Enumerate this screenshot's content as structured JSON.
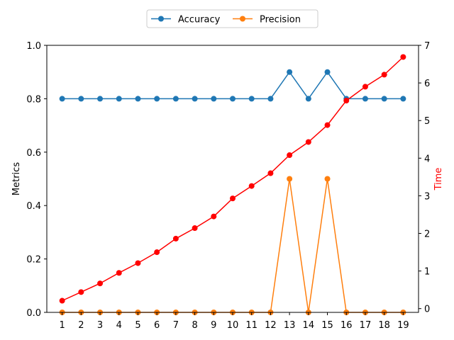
{
  "chart_data": {
    "type": "line",
    "x": [
      1,
      2,
      3,
      4,
      5,
      6,
      7,
      8,
      9,
      10,
      11,
      12,
      13,
      14,
      15,
      16,
      17,
      18,
      19
    ],
    "series": [
      {
        "name": "Accuracy",
        "axis": "left",
        "color": "#1f77b4",
        "values": [
          0.8,
          0.8,
          0.8,
          0.8,
          0.8,
          0.8,
          0.8,
          0.8,
          0.8,
          0.8,
          0.8,
          0.8,
          0.9,
          0.8,
          0.9,
          0.8,
          0.8,
          0.8,
          0.8
        ]
      },
      {
        "name": "Precision",
        "axis": "left",
        "color": "#ff7f0e",
        "values": [
          0.0,
          0.0,
          0.0,
          0.0,
          0.0,
          0.0,
          0.0,
          0.0,
          0.0,
          0.0,
          0.0,
          0.0,
          0.5,
          0.0,
          0.5,
          0.0,
          0.0,
          0.0,
          0.0
        ]
      },
      {
        "axis": "right",
        "color": "#ff0000",
        "values": [
          0.21,
          0.44,
          0.67,
          0.95,
          1.21,
          1.5,
          1.86,
          2.14,
          2.45,
          2.93,
          3.26,
          3.6,
          4.08,
          4.43,
          4.88,
          5.53,
          5.9,
          6.22,
          6.69
        ]
      }
    ],
    "xlabel": "",
    "ylabel": "Metrics",
    "ylabel_right": "Time",
    "ylabel_right_color": "#ff0000",
    "ylim": [
      0.0,
      1.0
    ],
    "ylim_right": [
      -0.1,
      7.0
    ],
    "yticks": [
      "0.0",
      "0.2",
      "0.4",
      "0.6",
      "0.8",
      "1.0"
    ],
    "yticks_right": [
      "0",
      "1",
      "2",
      "3",
      "4",
      "5",
      "6",
      "7"
    ],
    "grid": false,
    "legend": {
      "placement": "top-center",
      "entries": [
        "Accuracy",
        "Precision"
      ]
    }
  }
}
